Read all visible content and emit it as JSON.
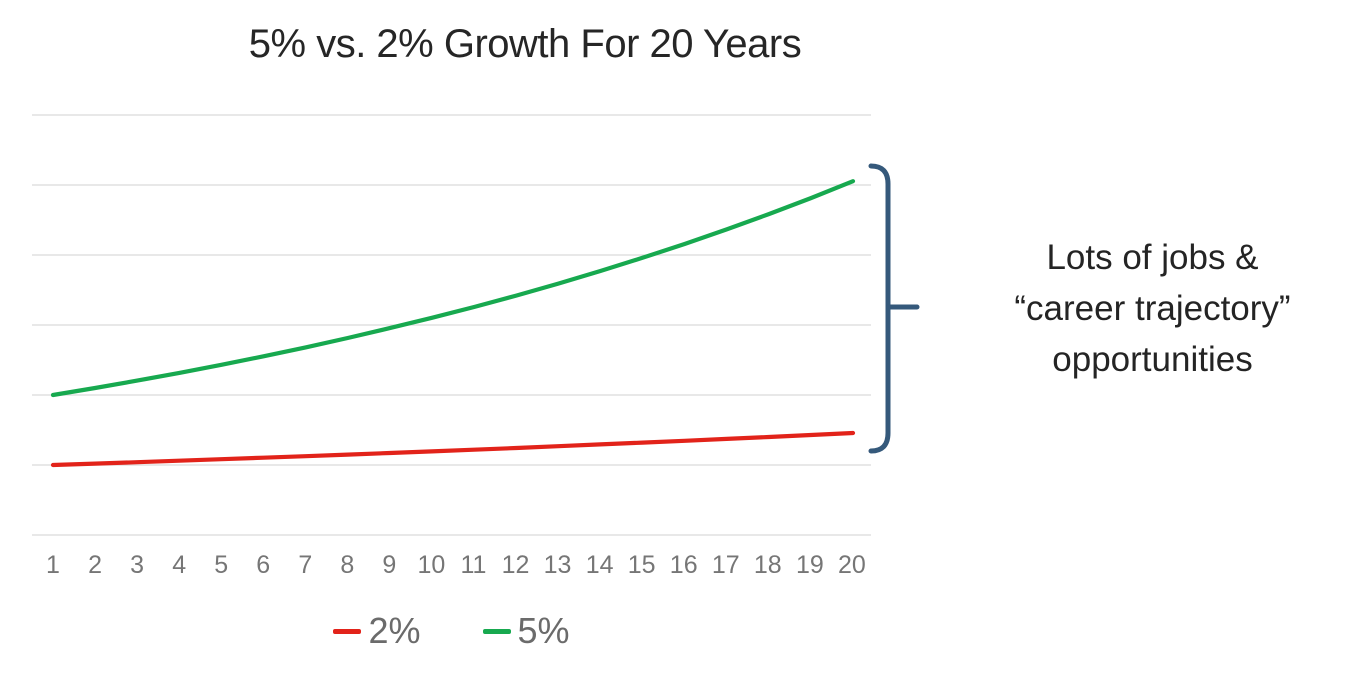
{
  "chart": {
    "title": "5% vs. 2% Growth For 20 Years"
  },
  "annotation": {
    "lines": [
      "Lots of jobs &",
      "“career trajectory”",
      "opportunities"
    ],
    "brace_color": "#35597b"
  },
  "colors": {
    "red_series": "#e2231a",
    "green_series": "#17a94f",
    "gridline": "#d9d9d9",
    "axis_label": "#767676",
    "title_text": "#262626",
    "annotation_text": "#242424",
    "brace": "#35597b"
  },
  "chart_data": {
    "type": "line",
    "title": "5% vs. 2% Growth For 20 Years",
    "x": [
      1,
      2,
      3,
      4,
      5,
      6,
      7,
      8,
      9,
      10,
      11,
      12,
      13,
      14,
      15,
      16,
      17,
      18,
      19,
      20
    ],
    "series": [
      {
        "name": "2%",
        "color": "#e2231a",
        "growth_rate": 0.02,
        "start_value": 50,
        "values": [
          50,
          51,
          52.02,
          53.06,
          54.12,
          55.2,
          56.31,
          57.43,
          58.58,
          59.75,
          60.95,
          62.17,
          63.41,
          64.68,
          65.97,
          67.29,
          68.64,
          70.01,
          71.41,
          72.84
        ]
      },
      {
        "name": "5%",
        "color": "#17a94f",
        "growth_rate": 0.05,
        "start_value": 100,
        "values": [
          100,
          105,
          110.25,
          115.76,
          121.55,
          127.63,
          134.01,
          140.71,
          147.75,
          155.13,
          162.89,
          171.03,
          179.59,
          188.56,
          197.99,
          207.89,
          218.29,
          229.2,
          240.66,
          252.7
        ]
      }
    ],
    "xlabel": "",
    "ylabel": "",
    "ylim": [
      0,
      300
    ],
    "gridline_step": 50,
    "grid": "horizontal-only",
    "y_axis_labels_visible": false,
    "legend_position": "bottom",
    "annotation": "Lots of jobs & “career trajectory” opportunities"
  }
}
